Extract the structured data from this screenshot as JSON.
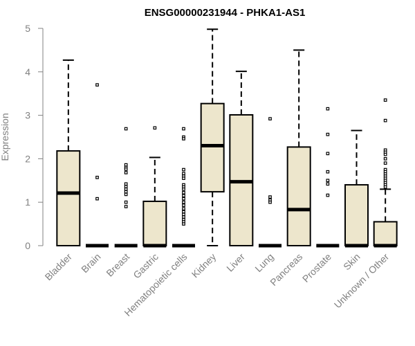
{
  "chart_data": {
    "type": "boxplot",
    "title": "ENSG00000231944 - PHKA1-AS1",
    "xlabel": "",
    "ylabel": "Expression",
    "ylim": [
      0,
      5
    ],
    "yticks": [
      0,
      1,
      2,
      3,
      4,
      5
    ],
    "colors": {
      "box_fill": "#EDE6CC",
      "stroke": "#000000",
      "axis": "#808080"
    },
    "categories": [
      "Bladder",
      "Brain",
      "Breast",
      "Gastric",
      "Hematopoietic cells",
      "Kidney",
      "Liver",
      "Lung",
      "Pancreas",
      "Prostate",
      "Skin",
      "Unknown / Other"
    ],
    "boxes": [
      {
        "name": "Bladder",
        "min": 0,
        "q1": 0,
        "median": 1.21,
        "q3": 2.18,
        "max": 4.27,
        "outliers": []
      },
      {
        "name": "Brain",
        "min": 0,
        "q1": 0,
        "median": 0,
        "q3": 0,
        "max": 0,
        "outliers": [
          3.7,
          1.57,
          1.08
        ]
      },
      {
        "name": "Breast",
        "min": 0,
        "q1": 0,
        "median": 0,
        "q3": 0,
        "max": 0,
        "outliers": [
          2.69,
          1.86,
          1.8,
          1.76,
          1.68,
          1.42,
          1.36,
          1.3,
          1.24,
          1.18,
          1.0,
          0.9
        ]
      },
      {
        "name": "Gastric",
        "min": 0,
        "q1": 0,
        "median": 0,
        "q3": 1.02,
        "max": 2.03,
        "outliers": [
          2.71
        ]
      },
      {
        "name": "Hematopoietic cells",
        "min": 0,
        "q1": 0,
        "median": 0,
        "q3": 0,
        "max": 0,
        "outliers": [
          2.69,
          2.5,
          2.46,
          1.75,
          1.66,
          1.6,
          1.55,
          1.4,
          1.35,
          1.3,
          1.22,
          1.15,
          1.08,
          1.0,
          0.93,
          0.85,
          0.78,
          0.72,
          0.66,
          0.6,
          0.55,
          0.5
        ]
      },
      {
        "name": "Kidney",
        "min": 0,
        "q1": 1.24,
        "median": 2.3,
        "q3": 3.27,
        "max": 4.98,
        "outliers": []
      },
      {
        "name": "Liver",
        "min": 0,
        "q1": 0,
        "median": 1.47,
        "q3": 3.01,
        "max": 4.01,
        "outliers": []
      },
      {
        "name": "Lung",
        "min": 0,
        "q1": 0,
        "median": 0,
        "q3": 0,
        "max": 0,
        "outliers": [
          2.92,
          1.12,
          1.05,
          1.0
        ]
      },
      {
        "name": "Pancreas",
        "min": 0,
        "q1": 0,
        "median": 0.83,
        "q3": 2.27,
        "max": 4.5,
        "outliers": []
      },
      {
        "name": "Prostate",
        "min": 0,
        "q1": 0,
        "median": 0,
        "q3": 0,
        "max": 0,
        "outliers": [
          3.15,
          2.56,
          2.12,
          1.7,
          1.5,
          1.42,
          1.16
        ]
      },
      {
        "name": "Skin",
        "min": 0,
        "q1": 0,
        "median": 0,
        "q3": 1.4,
        "max": 2.65,
        "outliers": []
      },
      {
        "name": "Unknown / Other",
        "min": 0,
        "q1": 0,
        "median": 0,
        "q3": 0.55,
        "max": 1.3,
        "outliers": [
          3.35,
          2.88,
          2.2,
          2.15,
          2.1,
          2.0,
          1.9,
          1.75,
          1.7,
          1.65,
          1.6,
          1.55,
          1.5,
          1.45,
          1.4,
          1.35
        ]
      }
    ]
  }
}
